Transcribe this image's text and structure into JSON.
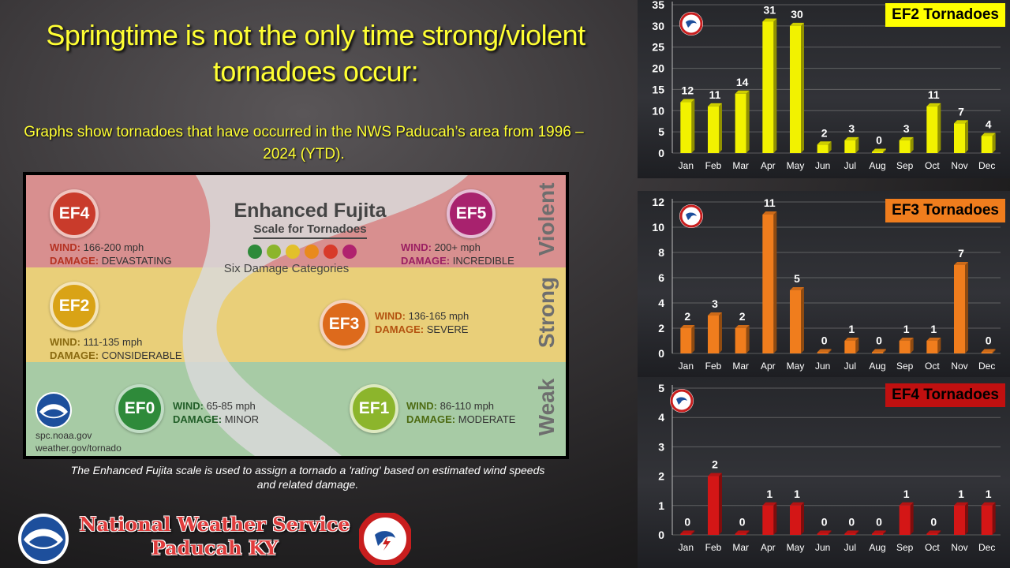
{
  "headline": "Springtime is not the only time strong/violent tornadoes occur:",
  "subhead": "Graphs show tornadoes that have occurred in the NWS Paducah’s area from 1996 – 2024 (YTD).",
  "ef_scale": {
    "title": "Enhanced Fujita",
    "subtitle": "Scale for Tornadoes",
    "categories_label": "Six Damage Categories",
    "wind_label": "WIND:",
    "damage_label": "DAMAGE:",
    "bands": {
      "violent": "Violent",
      "strong": "Strong",
      "weak": "Weak"
    },
    "dot_colors": [
      "#2e8a3a",
      "#8cb52c",
      "#e2c02a",
      "#e98a1c",
      "#d83a2a",
      "#b0226e"
    ],
    "levels": {
      "ef0": {
        "name": "EF0",
        "wind": "65-85 mph",
        "damage": "MINOR",
        "color": "#2e8a3a"
      },
      "ef1": {
        "name": "EF1",
        "wind": "86-110 mph",
        "damage": "MODERATE",
        "color": "#8cb52c"
      },
      "ef2": {
        "name": "EF2",
        "wind": "111-135 mph",
        "damage": "CONSIDERABLE",
        "color": "#d9a316"
      },
      "ef3": {
        "name": "EF3",
        "wind": "136-165 mph",
        "damage": "SEVERE",
        "color": "#dd6a1c"
      },
      "ef4": {
        "name": "EF4",
        "wind": "166-200 mph",
        "damage": "DEVASTATING",
        "color": "#c93b2b"
      },
      "ef5": {
        "name": "EF5",
        "wind": "200+ mph",
        "damage": "INCREDIBLE",
        "color": "#a8226e"
      }
    },
    "links": [
      "spc.noaa.gov",
      "weather.gov/tornado"
    ],
    "icons": [
      "noaa-logo-icon"
    ]
  },
  "caption": "The Enhanced Fujita scale is used to assign a tornado a 'rating' based on estimated wind speeds and related damage.",
  "footer": {
    "org_line1": "National Weather Service",
    "org_line2": "Paducah KY",
    "icons": [
      "noaa-logo-icon",
      "nws-logo-icon"
    ]
  },
  "chart_data": [
    {
      "type": "bar",
      "title": "EF2 Tornadoes",
      "categories": [
        "Jan",
        "Feb",
        "Mar",
        "Apr",
        "May",
        "Jun",
        "Jul",
        "Aug",
        "Sep",
        "Oct",
        "Nov",
        "Dec"
      ],
      "values": [
        12,
        11,
        14,
        31,
        30,
        2,
        3,
        0,
        3,
        11,
        7,
        4
      ],
      "ylim": [
        0,
        35
      ],
      "yticks": [
        0,
        5,
        10,
        15,
        20,
        25,
        30,
        35
      ],
      "bar_color": "#f2f200",
      "title_bg": "#ffff00",
      "grid": true,
      "data_labels": true
    },
    {
      "type": "bar",
      "title": "EF3 Tornadoes",
      "categories": [
        "Jan",
        "Feb",
        "Mar",
        "Apr",
        "May",
        "Jun",
        "Jul",
        "Aug",
        "Sep",
        "Oct",
        "Nov",
        "Dec"
      ],
      "values": [
        2,
        3,
        2,
        11,
        5,
        0,
        1,
        0,
        1,
        1,
        7,
        0
      ],
      "ylim": [
        0,
        12
      ],
      "yticks": [
        0,
        2,
        4,
        6,
        8,
        10,
        12
      ],
      "bar_color": "#f07d1d",
      "title_bg": "#f07d1d",
      "grid": true,
      "data_labels": true
    },
    {
      "type": "bar",
      "title": "EF4 Tornadoes",
      "categories": [
        "Jan",
        "Feb",
        "Mar",
        "Apr",
        "May",
        "Jun",
        "Jul",
        "Aug",
        "Sep",
        "Oct",
        "Nov",
        "Dec"
      ],
      "values": [
        0,
        2,
        0,
        1,
        1,
        0,
        0,
        0,
        1,
        0,
        1,
        1
      ],
      "ylim": [
        0,
        5
      ],
      "yticks": [
        0,
        1,
        2,
        3,
        4,
        5
      ],
      "bar_color": "#d41616",
      "title_bg": "#c01010",
      "grid": true,
      "data_labels": true
    }
  ]
}
